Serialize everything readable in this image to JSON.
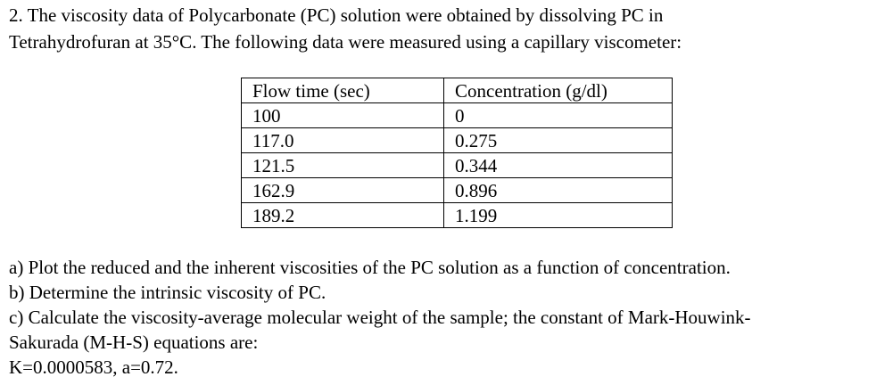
{
  "problem": {
    "intro_lines": [
      "2. The viscosity data of Polycarbonate (PC) solution were obtained by dissolving PC in",
      "Tetrahydrofuran at 35°C. The following data were measured using a capillary viscometer:"
    ]
  },
  "table": {
    "headers": [
      "Flow time (sec)",
      "Concentration (g/dl)"
    ],
    "rows": [
      [
        "100",
        "0"
      ],
      [
        "117.0",
        "0.275"
      ],
      [
        "121.5",
        "0.344"
      ],
      [
        "162.9",
        "0.896"
      ],
      [
        "189.2",
        "1.199"
      ]
    ]
  },
  "questions": {
    "lines": [
      "a) Plot the reduced and the inherent viscosities of the PC solution as a function of concentration.",
      "b) Determine the intrinsic viscosity of PC.",
      "c) Calculate the viscosity-average molecular weight of the sample; the constant of Mark-Houwink-",
      "Sakurada (M-H-S) equations are:",
      "K=0.0000583, a=0.72."
    ]
  }
}
